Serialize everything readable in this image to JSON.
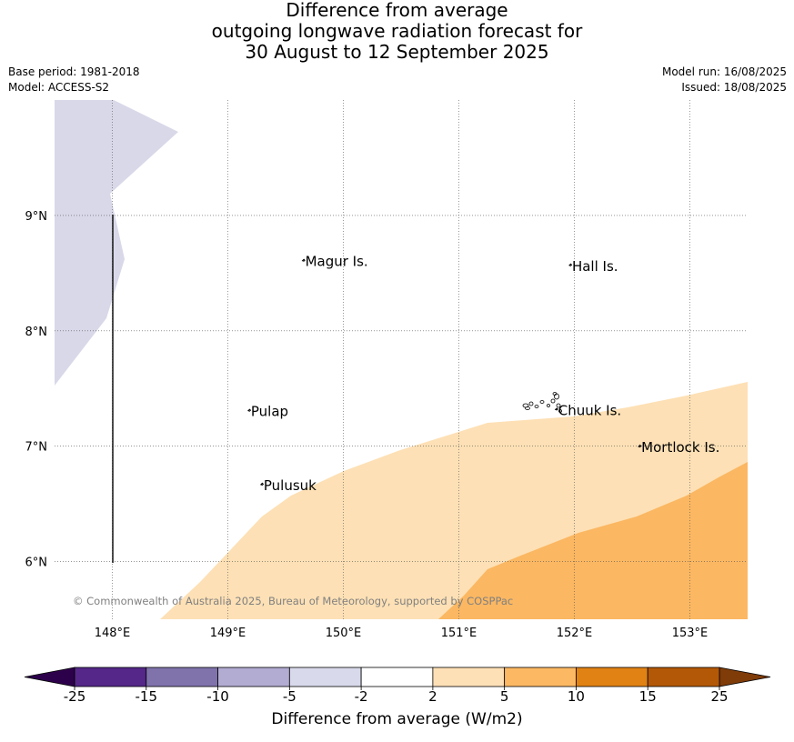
{
  "title": {
    "line1": "Difference from average",
    "line2": "outgoing longwave radiation forecast for",
    "line3": "30 August to 12 September 2025"
  },
  "meta": {
    "base_period": "Base period: 1981-2018",
    "model": "Model: ACCESS-S2",
    "model_run": "Model run: 16/08/2025",
    "issued": "Issued: 18/08/2025"
  },
  "map": {
    "lon_range": [
      147.5,
      153.5
    ],
    "lat_range": [
      5.5,
      10.0
    ],
    "lon_ticks": [
      {
        "value": 148,
        "label": "148°E"
      },
      {
        "value": 149,
        "label": "149°E"
      },
      {
        "value": 150,
        "label": "150°E"
      },
      {
        "value": 151,
        "label": "151°E"
      },
      {
        "value": 152,
        "label": "152°E"
      },
      {
        "value": 153,
        "label": "153°E"
      }
    ],
    "lat_ticks": [
      {
        "value": 9,
        "label": "9°N"
      },
      {
        "value": 8,
        "label": "8°N"
      },
      {
        "value": 7,
        "label": "7°N"
      },
      {
        "value": 6,
        "label": "6°N"
      }
    ],
    "places": [
      {
        "name": "Magur Is.",
        "lon": 149.67,
        "lat": 8.56
      },
      {
        "name": "Hall Is.",
        "lon": 151.98,
        "lat": 8.52
      },
      {
        "name": "Pulap",
        "lon": 149.2,
        "lat": 7.26
      },
      {
        "name": "Chuuk Is.",
        "lon": 151.86,
        "lat": 7.27
      },
      {
        "name": "Mortlock Is.",
        "lon": 152.58,
        "lat": 6.95
      },
      {
        "name": "Pulusuk",
        "lon": 149.31,
        "lat": 6.62
      }
    ],
    "copyright": "© Commonwealth of Australia 2025, Bureau of Meteorology, supported by COSPPac",
    "colors": {
      "light_purple": "#d8d8e9",
      "light_orange": "#fde0b5",
      "mid_orange": "#fbb762"
    }
  },
  "colorbar": {
    "label": "Difference from average (W/m2)",
    "ticks": [
      "-25",
      "-15",
      "-10",
      "-5",
      "-2",
      "2",
      "5",
      "10",
      "15",
      "25"
    ],
    "colors": [
      "#542788",
      "#8073ac",
      "#b2abd2",
      "#d8daeb",
      "#ffffff",
      "#fee0b6",
      "#fdb863",
      "#e08214",
      "#b35806"
    ],
    "under_color": "#2d004b",
    "over_color": "#7f3b08"
  }
}
